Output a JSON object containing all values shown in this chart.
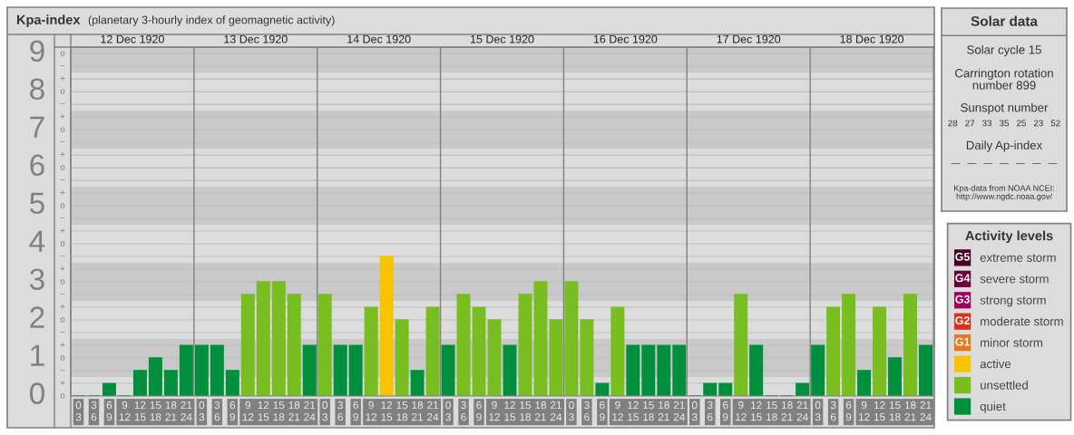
{
  "chart_data": [
    {
      "type": "bar",
      "title": "Kpa-index",
      "subtitle": "(planetary 3-hourly index of geomagnetic activity)",
      "legend_title": "Activity levels",
      "legend": "right",
      "categories": [
        "0\n3",
        "3\n6",
        "6\n9",
        "9\n12",
        "12\n15",
        "15\n18",
        "18\n21",
        "21\n24",
        "0\n3",
        "3\n6",
        "6\n9",
        "9\n12",
        "12\n15",
        "15\n18",
        "18\n21",
        "21\n24",
        "0\n3",
        "3\n6",
        "6\n9",
        "9\n12",
        "12\n15",
        "15\n18",
        "18\n21",
        "21\n24",
        "0\n3",
        "3\n6",
        "6\n9",
        "9\n12",
        "12\n15",
        "15\n18",
        "18\n21",
        "21\n24",
        "0\n3",
        "3\n6",
        "6\n9",
        "9\n12",
        "12\n15",
        "15\n18",
        "18\n21",
        "21\n24",
        "0\n3",
        "3\n6",
        "6\n9",
        "9\n12",
        "12\n15",
        "15\n18",
        "18\n21",
        "21\n24",
        "0\n3",
        "3\n6",
        "6\n9",
        "9\n12",
        "12\n15",
        "15\n18",
        "18\n21",
        "21\n24"
      ],
      "ylim": [
        0,
        9.17
      ],
      "yticks": [
        0,
        1,
        2,
        3,
        4,
        5,
        6,
        7,
        8,
        9
      ],
      "grid": "y",
      "bands": [
        {
          "axis": "y",
          "from": 0.5,
          "to": 1.5,
          "color": "#c9c9c9"
        },
        {
          "axis": "y",
          "from": 2.5,
          "to": 3.5,
          "color": "#c9c9c9"
        },
        {
          "axis": "y",
          "from": 4.5,
          "to": 5.5,
          "color": "#c9c9c9"
        },
        {
          "axis": "y",
          "from": 6.5,
          "to": 7.5,
          "color": "#c9c9c9"
        },
        {
          "axis": "y",
          "from": 8.5,
          "to": 9.17,
          "color": "#c9c9c9"
        }
      ],
      "annotations": [
        "12 Dec 1920",
        "13 Dec 1920",
        "14 Dec 1920",
        "15 Dec 1920",
        "16 Dec 1920",
        "17 Dec 1920",
        "18 Dec 1920",
        "G5",
        "G4",
        "G3",
        "G2",
        "G1",
        "o",
        "+",
        "−",
        "o",
        "+",
        "−",
        "o",
        "+",
        "−",
        "o",
        "+",
        "−",
        "o",
        "+",
        "−",
        "o",
        "+",
        "−",
        "o",
        "+",
        "−",
        "o",
        "+",
        "−",
        "o",
        "+",
        "−",
        "o"
      ],
      "series": [
        {
          "name": "extreme storm",
          "color": "#4a0024",
          "values": [
            null,
            null,
            null,
            null,
            null,
            null,
            null,
            null,
            null,
            null,
            null,
            null,
            null,
            null,
            null,
            null,
            null,
            null,
            null,
            null,
            null,
            null,
            null,
            null,
            null,
            null,
            null,
            null,
            null,
            null,
            null,
            null,
            null,
            null,
            null,
            null,
            null,
            null,
            null,
            null,
            null,
            null,
            null,
            null,
            null,
            null,
            null,
            null,
            null,
            null,
            null,
            null,
            null,
            null,
            null,
            null
          ]
        },
        {
          "name": "severe storm",
          "color": "#6c0040",
          "values": [
            null,
            null,
            null,
            null,
            null,
            null,
            null,
            null,
            null,
            null,
            null,
            null,
            null,
            null,
            null,
            null,
            null,
            null,
            null,
            null,
            null,
            null,
            null,
            null,
            null,
            null,
            null,
            null,
            null,
            null,
            null,
            null,
            null,
            null,
            null,
            null,
            null,
            null,
            null,
            null,
            null,
            null,
            null,
            null,
            null,
            null,
            null,
            null,
            null,
            null,
            null,
            null,
            null,
            null,
            null,
            null
          ]
        },
        {
          "name": "strong storm",
          "color": "#a3005c",
          "values": [
            null,
            null,
            null,
            null,
            null,
            null,
            null,
            null,
            null,
            null,
            null,
            null,
            null,
            null,
            null,
            null,
            null,
            null,
            null,
            null,
            null,
            null,
            null,
            null,
            null,
            null,
            null,
            null,
            null,
            null,
            null,
            null,
            null,
            null,
            null,
            null,
            null,
            null,
            null,
            null,
            null,
            null,
            null,
            null,
            null,
            null,
            null,
            null,
            null,
            null,
            null,
            null,
            null,
            null,
            null,
            null
          ]
        },
        {
          "name": "moderate storm",
          "color": "#d9311c",
          "values": [
            null,
            null,
            null,
            null,
            null,
            null,
            null,
            null,
            null,
            null,
            null,
            null,
            null,
            null,
            null,
            null,
            null,
            null,
            null,
            null,
            null,
            null,
            null,
            null,
            null,
            null,
            null,
            null,
            null,
            null,
            null,
            null,
            null,
            null,
            null,
            null,
            null,
            null,
            null,
            null,
            null,
            null,
            null,
            null,
            null,
            null,
            null,
            null,
            null,
            null,
            null,
            null,
            null,
            null,
            null,
            null
          ]
        },
        {
          "name": "minor storm",
          "color": "#e8781c",
          "values": [
            null,
            null,
            null,
            null,
            null,
            null,
            null,
            null,
            null,
            null,
            null,
            null,
            null,
            null,
            null,
            null,
            null,
            null,
            null,
            null,
            null,
            null,
            null,
            null,
            null,
            null,
            null,
            null,
            null,
            null,
            null,
            null,
            null,
            null,
            null,
            null,
            null,
            null,
            null,
            null,
            null,
            null,
            null,
            null,
            null,
            null,
            null,
            null,
            null,
            null,
            null,
            null,
            null,
            null,
            null,
            null
          ]
        },
        {
          "name": "active",
          "color": "#f8c300",
          "values": [
            null,
            null,
            null,
            null,
            null,
            null,
            null,
            null,
            null,
            null,
            null,
            null,
            null,
            null,
            null,
            null,
            null,
            null,
            null,
            null,
            3.67,
            null,
            null,
            null,
            null,
            null,
            null,
            null,
            null,
            null,
            null,
            null,
            null,
            null,
            null,
            null,
            null,
            null,
            null,
            null,
            null,
            null,
            null,
            null,
            null,
            null,
            null,
            null,
            null,
            null,
            null,
            null,
            null,
            null,
            null,
            null
          ]
        },
        {
          "name": "unsettled",
          "color": "#78be20",
          "values": [
            null,
            null,
            null,
            null,
            null,
            null,
            null,
            null,
            null,
            null,
            null,
            2.67,
            3,
            3,
            2.67,
            null,
            2.67,
            null,
            null,
            2.33,
            null,
            2,
            null,
            2.33,
            null,
            2.67,
            2.33,
            2,
            null,
            2.67,
            3,
            2,
            3,
            2,
            null,
            2.33,
            null,
            null,
            null,
            null,
            null,
            null,
            null,
            2.67,
            null,
            null,
            null,
            null,
            null,
            2.33,
            2.67,
            null,
            2.33,
            null,
            2.67,
            null
          ]
        },
        {
          "name": "quiet",
          "color": "#00903d",
          "values": [
            0,
            0,
            0.33,
            0,
            0.67,
            1,
            0.67,
            1.33,
            1.33,
            1.33,
            0.67,
            null,
            null,
            null,
            null,
            1.33,
            null,
            1.33,
            1.33,
            null,
            null,
            null,
            0.67,
            null,
            1.33,
            null,
            null,
            null,
            1.33,
            null,
            null,
            null,
            null,
            null,
            0.33,
            null,
            1.33,
            1.33,
            1.33,
            1.33,
            0,
            0.33,
            0.33,
            null,
            1.33,
            0,
            0,
            0.33,
            1.33,
            null,
            null,
            0.67,
            null,
            1,
            null,
            1.33
          ]
        }
      ]
    },
    {
      "type": "other",
      "title": "Solar data",
      "annotations": [
        "Solar cycle 15",
        "Carrington rotation\nnumber 899",
        "Sunspot number",
        "28   27   33   35   25   23   52",
        "Daily Ap-index",
        "—   —   —   —   —   —   —",
        "Kpa-data from NOAA NCEI:\nhttp://www.ngdc.noaa.gov/"
      ]
    }
  ]
}
